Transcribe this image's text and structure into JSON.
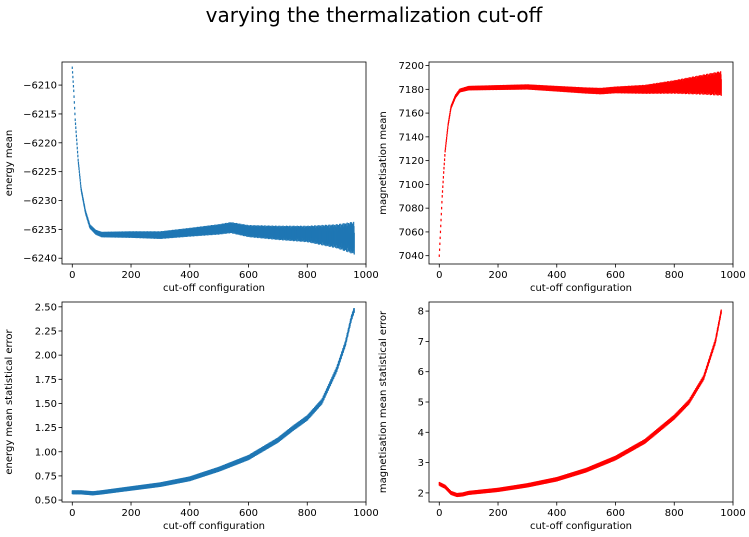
{
  "figure": {
    "title": "varying the thermalization cut-off"
  },
  "chart_data": [
    {
      "type": "scatter",
      "panel": "top-left",
      "xlabel": "cut-off configuration",
      "ylabel": "energy mean",
      "xlim": [
        -35,
        1000
      ],
      "ylim": [
        -6241,
        -6206
      ],
      "xticks": [
        0,
        200,
        400,
        600,
        800,
        1000
      ],
      "yticks": [
        -6240,
        -6235,
        -6230,
        -6225,
        -6220,
        -6215,
        -6210
      ],
      "color": "#1f77b4",
      "grid": false,
      "shape": "thermalization-decay",
      "series": [
        {
          "x_range": [
            0,
            960
          ],
          "x_step": 1,
          "key_points": [
            [
              0,
              -6207
            ],
            [
              5,
              -6211
            ],
            [
              10,
              -6216
            ],
            [
              20,
              -6223
            ],
            [
              30,
              -6228
            ],
            [
              45,
              -6232
            ],
            [
              60,
              -6234.5
            ],
            [
              80,
              -6235.5
            ],
            [
              100,
              -6235.9
            ],
            [
              200,
              -6235.9
            ],
            [
              300,
              -6236.0
            ],
            [
              400,
              -6235.5
            ],
            [
              500,
              -6235.0
            ],
            [
              540,
              -6234.7
            ],
            [
              600,
              -6235.3
            ],
            [
              700,
              -6235.6
            ],
            [
              800,
              -6235.8
            ],
            [
              900,
              -6236.2
            ],
            [
              960,
              -6236.5
            ]
          ],
          "spread_points": [
            [
              0,
              0
            ],
            [
              100,
              0.3
            ],
            [
              400,
              0.6
            ],
            [
              600,
              0.9
            ],
            [
              800,
              1.3
            ],
            [
              900,
              2.0
            ],
            [
              960,
              2.8
            ]
          ]
        }
      ]
    },
    {
      "type": "scatter",
      "panel": "top-right",
      "xlabel": "cut-off configuration",
      "ylabel": "magnetisation mean",
      "xlim": [
        -35,
        1000
      ],
      "ylim": [
        7033,
        7203
      ],
      "xticks": [
        0,
        200,
        400,
        600,
        800,
        1000
      ],
      "yticks": [
        7040,
        7060,
        7080,
        7100,
        7120,
        7140,
        7160,
        7180,
        7200
      ],
      "color": "#ff0000",
      "grid": false,
      "shape": "thermalization-rise",
      "series": [
        {
          "x_range": [
            0,
            960
          ],
          "x_step": 1,
          "key_points": [
            [
              0,
              7040
            ],
            [
              5,
              7065
            ],
            [
              10,
              7090
            ],
            [
              15,
              7110
            ],
            [
              20,
              7128
            ],
            [
              30,
              7150
            ],
            [
              40,
              7165
            ],
            [
              55,
              7174
            ],
            [
              70,
              7179
            ],
            [
              100,
              7181
            ],
            [
              200,
              7181.5
            ],
            [
              300,
              7182
            ],
            [
              400,
              7180.5
            ],
            [
              500,
              7179
            ],
            [
              550,
              7178.5
            ],
            [
              600,
              7179.5
            ],
            [
              700,
              7180
            ],
            [
              800,
              7182
            ],
            [
              900,
              7184
            ],
            [
              960,
              7185
            ]
          ],
          "spread_points": [
            [
              0,
              0
            ],
            [
              100,
              1
            ],
            [
              400,
              1.5
            ],
            [
              600,
              2
            ],
            [
              700,
              3
            ],
            [
              800,
              5
            ],
            [
              900,
              8
            ],
            [
              960,
              10
            ]
          ]
        }
      ]
    },
    {
      "type": "scatter",
      "panel": "bottom-left",
      "xlabel": "cut-off configuration",
      "ylabel": "energy mean statistical error",
      "xlim": [
        -35,
        1000
      ],
      "ylim": [
        0.48,
        2.55
      ],
      "xticks": [
        0,
        200,
        400,
        600,
        800,
        1000
      ],
      "yticks": [
        0.5,
        0.75,
        1.0,
        1.25,
        1.5,
        1.75,
        2.0,
        2.25,
        2.5
      ],
      "ytick_labels": [
        "0.50",
        "0.75",
        "1.00",
        "1.25",
        "1.50",
        "1.75",
        "2.00",
        "2.25",
        "2.50"
      ],
      "color": "#1f77b4",
      "grid": false,
      "shape": "error-growth",
      "series": [
        {
          "x_range": [
            0,
            960
          ],
          "x_step": 1,
          "key_points": [
            [
              0,
              0.58
            ],
            [
              30,
              0.58
            ],
            [
              70,
              0.57
            ],
            [
              100,
              0.58
            ],
            [
              200,
              0.62
            ],
            [
              300,
              0.66
            ],
            [
              400,
              0.72
            ],
            [
              500,
              0.82
            ],
            [
              600,
              0.94
            ],
            [
              700,
              1.12
            ],
            [
              750,
              1.24
            ],
            [
              800,
              1.35
            ],
            [
              850,
              1.52
            ],
            [
              900,
              1.85
            ],
            [
              930,
              2.12
            ],
            [
              950,
              2.38
            ],
            [
              960,
              2.47
            ]
          ],
          "spread_points": [
            [
              0,
              0.01
            ],
            [
              960,
              0.02
            ]
          ]
        }
      ]
    },
    {
      "type": "scatter",
      "panel": "bottom-right",
      "xlabel": "cut-off configuration",
      "ylabel": "magnetisation mean statistical error",
      "xlim": [
        -35,
        1000
      ],
      "ylim": [
        1.7,
        8.3
      ],
      "xticks": [
        0,
        200,
        400,
        600,
        800,
        1000
      ],
      "yticks": [
        2,
        3,
        4,
        5,
        6,
        7,
        8
      ],
      "color": "#ff0000",
      "grid": false,
      "shape": "error-growth",
      "series": [
        {
          "x_range": [
            0,
            960
          ],
          "x_step": 1,
          "key_points": [
            [
              0,
              2.3
            ],
            [
              20,
              2.2
            ],
            [
              40,
              2.0
            ],
            [
              60,
              1.93
            ],
            [
              80,
              1.95
            ],
            [
              100,
              2.0
            ],
            [
              200,
              2.1
            ],
            [
              300,
              2.25
            ],
            [
              400,
              2.45
            ],
            [
              500,
              2.75
            ],
            [
              600,
              3.15
            ],
            [
              700,
              3.7
            ],
            [
              750,
              4.1
            ],
            [
              800,
              4.5
            ],
            [
              850,
              5.0
            ],
            [
              900,
              5.8
            ],
            [
              940,
              7.0
            ],
            [
              960,
              8.0
            ]
          ],
          "spread_points": [
            [
              0,
              0.03
            ],
            [
              960,
              0.05
            ]
          ]
        }
      ]
    }
  ]
}
